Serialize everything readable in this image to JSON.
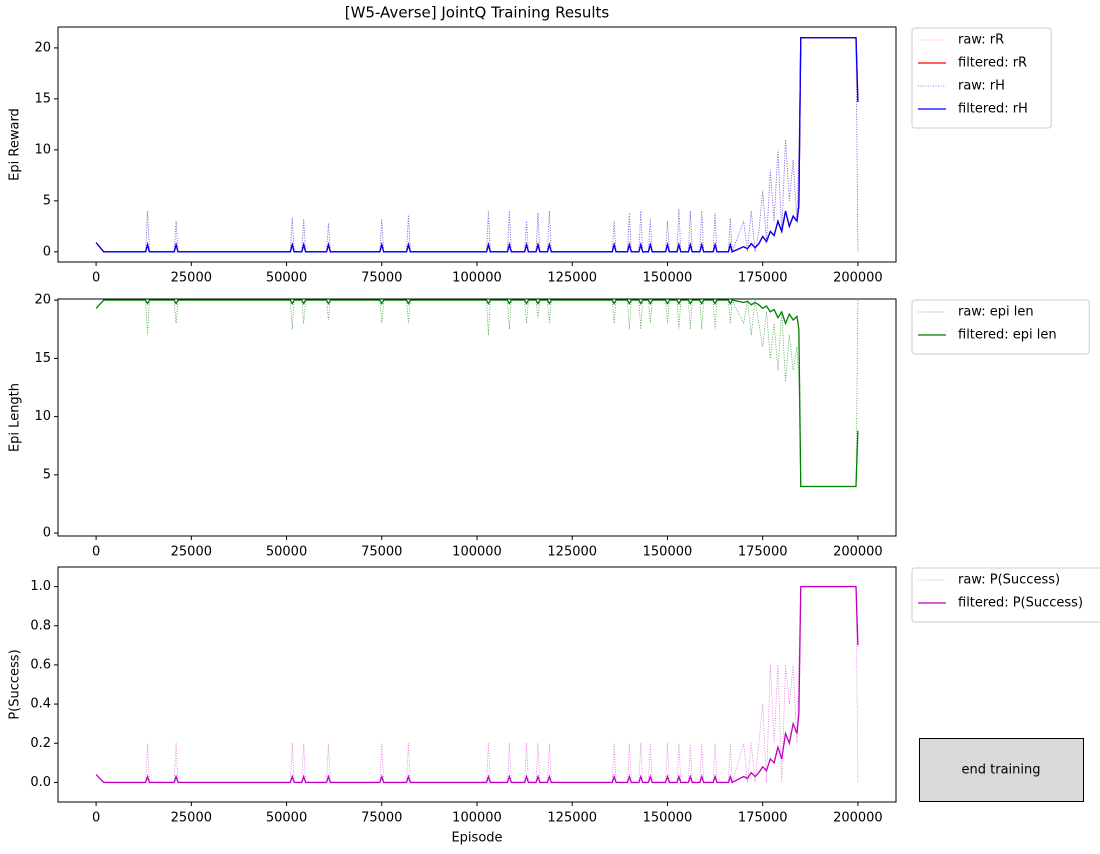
{
  "chart_data": [
    {
      "type": "line",
      "title": "[W5-Averse] JointQ Training Results",
      "ylabel": "Epi Reward",
      "x": [
        0,
        2000,
        13000,
        13500,
        14000,
        20500,
        21000,
        21500,
        51000,
        51500,
        52000,
        54000,
        54500,
        55000,
        60500,
        61000,
        61500,
        74500,
        75000,
        75500,
        81500,
        82000,
        82500,
        102500,
        103000,
        103500,
        108000,
        108500,
        109000,
        112500,
        113000,
        113500,
        115500,
        116000,
        116500,
        118500,
        119000,
        119500,
        135500,
        136000,
        136500,
        139500,
        140000,
        140500,
        142500,
        143000,
        143500,
        145000,
        145500,
        146000,
        149500,
        150000,
        150500,
        152500,
        153000,
        153500,
        155500,
        156000,
        156500,
        158500,
        159000,
        159500,
        162000,
        162500,
        163000,
        166000,
        166500,
        167000,
        170000,
        171000,
        172000,
        173000,
        174000,
        175000,
        176000,
        177000,
        178000,
        179000,
        180000,
        181000,
        182000,
        183000,
        184000,
        184500,
        185000,
        186000,
        199000,
        199500,
        200000
      ],
      "xlim": [
        -10000,
        210000
      ],
      "xticks": [
        0,
        25000,
        50000,
        75000,
        100000,
        125000,
        150000,
        175000,
        200000
      ],
      "ylim": [
        -1,
        22.05
      ],
      "yticks": [
        0,
        5,
        10,
        15,
        20
      ],
      "grid": false,
      "legend": "outside-right",
      "series": [
        {
          "name": "raw: rR",
          "color": "#ff8080",
          "linestyle": "dotted",
          "values": [
            0.9,
            0,
            0,
            4,
            0,
            0,
            3,
            0,
            0,
            3.3,
            0,
            0,
            3.2,
            0,
            0,
            2.8,
            0,
            0,
            3.2,
            0,
            0,
            3.6,
            0,
            0,
            4,
            0,
            0,
            4,
            0,
            0,
            3,
            0,
            0,
            3.8,
            0,
            0,
            4,
            0,
            0,
            3,
            0,
            0,
            3.8,
            0,
            0,
            4,
            0,
            0,
            3.2,
            0,
            0,
            3,
            0,
            0,
            4.2,
            0,
            0,
            4,
            0,
            0,
            4,
            0,
            0,
            3.8,
            0,
            0,
            3.3,
            0,
            3,
            0,
            4,
            0,
            2,
            6,
            1,
            8,
            3,
            10,
            2,
            11,
            5,
            9,
            3,
            10,
            21,
            21,
            21,
            21,
            0
          ]
        },
        {
          "name": "filtered: rR",
          "color": "#ff0000",
          "linestyle": "solid",
          "values": [
            0.9,
            0,
            0,
            0.7,
            0,
            0,
            0.7,
            0,
            0,
            0.7,
            0,
            0,
            0.7,
            0,
            0,
            0.7,
            0,
            0,
            0.7,
            0,
            0,
            0.7,
            0,
            0,
            0.7,
            0,
            0,
            0.7,
            0,
            0,
            0.7,
            0,
            0,
            0.7,
            0,
            0,
            0.7,
            0,
            0,
            0.7,
            0,
            0,
            0.7,
            0,
            0,
            0.7,
            0,
            0,
            0.7,
            0,
            0,
            0.7,
            0,
            0,
            0.7,
            0,
            0,
            0.7,
            0,
            0,
            0.7,
            0,
            0,
            0.7,
            0,
            0,
            0.7,
            0,
            0.5,
            0.3,
            0.8,
            0.4,
            0.8,
            1.5,
            1,
            2,
            1.6,
            3,
            2,
            4,
            2.5,
            3.5,
            3,
            4.5,
            21,
            21,
            21,
            21,
            14.7
          ]
        },
        {
          "name": "raw: rH",
          "color": "#6060ff",
          "linestyle": "dotted",
          "values": [
            0.9,
            0,
            0,
            4,
            0,
            0,
            3,
            0,
            0,
            3.3,
            0,
            0,
            3.2,
            0,
            0,
            2.8,
            0,
            0,
            3.2,
            0,
            0,
            3.6,
            0,
            0,
            4,
            0,
            0,
            4,
            0,
            0,
            3,
            0,
            0,
            3.8,
            0,
            0,
            4,
            0,
            0,
            3,
            0,
            0,
            3.8,
            0,
            0,
            4,
            0,
            0,
            3.2,
            0,
            0,
            3,
            0,
            0,
            4.2,
            0,
            0,
            4,
            0,
            0,
            4,
            0,
            0,
            3.8,
            0,
            0,
            3.3,
            0,
            3,
            0,
            4,
            0,
            2,
            6,
            1,
            8,
            3,
            10,
            2,
            11,
            5,
            9,
            3,
            10,
            21,
            21,
            21,
            21,
            0
          ]
        },
        {
          "name": "filtered: rH",
          "color": "#0000ff",
          "linestyle": "solid",
          "values": [
            0.9,
            0,
            0,
            0.7,
            0,
            0,
            0.7,
            0,
            0,
            0.7,
            0,
            0,
            0.7,
            0,
            0,
            0.7,
            0,
            0,
            0.7,
            0,
            0,
            0.7,
            0,
            0,
            0.7,
            0,
            0,
            0.7,
            0,
            0,
            0.7,
            0,
            0,
            0.7,
            0,
            0,
            0.7,
            0,
            0,
            0.7,
            0,
            0,
            0.7,
            0,
            0,
            0.7,
            0,
            0,
            0.7,
            0,
            0,
            0.7,
            0,
            0,
            0.7,
            0,
            0,
            0.7,
            0,
            0,
            0.7,
            0,
            0,
            0.7,
            0,
            0,
            0.7,
            0,
            0.5,
            0.3,
            0.8,
            0.4,
            0.8,
            1.5,
            1,
            2,
            1.6,
            3,
            2,
            4,
            2.5,
            3.5,
            3,
            4.5,
            21,
            21,
            21,
            21,
            14.7
          ]
        }
      ]
    },
    {
      "type": "line",
      "ylabel": "Epi Length",
      "x": [
        0,
        2000,
        13000,
        13500,
        14000,
        20500,
        21000,
        21500,
        51000,
        51500,
        52000,
        54000,
        54500,
        55000,
        60500,
        61000,
        61500,
        74500,
        75000,
        75500,
        81500,
        82000,
        82500,
        102500,
        103000,
        103500,
        108000,
        108500,
        109000,
        112500,
        113000,
        113500,
        115500,
        116000,
        116500,
        118500,
        119000,
        119500,
        135500,
        136000,
        136500,
        139500,
        140000,
        140500,
        142500,
        143000,
        143500,
        145000,
        145500,
        146000,
        149500,
        150000,
        150500,
        152500,
        153000,
        153500,
        155500,
        156000,
        156500,
        158500,
        159000,
        159500,
        162000,
        162500,
        163000,
        166000,
        166500,
        167000,
        170000,
        171000,
        172000,
        173000,
        174000,
        175000,
        176000,
        177000,
        178000,
        179000,
        180000,
        181000,
        182000,
        183000,
        184000,
        184500,
        185000,
        186000,
        199000,
        199500,
        200000
      ],
      "xlim": [
        -10000,
        210000
      ],
      "xticks": [
        0,
        25000,
        50000,
        75000,
        100000,
        125000,
        150000,
        175000,
        200000
      ],
      "ylim": [
        -0.25,
        20.1
      ],
      "yticks": [
        0,
        5,
        10,
        15,
        20
      ],
      "grid": false,
      "legend": "outside-right",
      "series": [
        {
          "name": "raw: epi len",
          "color": "#40a040",
          "linestyle": "dotted",
          "values": [
            19.3,
            20,
            20,
            17,
            20,
            20,
            18,
            20,
            20,
            17.5,
            20,
            20,
            18,
            20,
            20,
            18.3,
            20,
            20,
            18,
            20,
            20,
            18,
            20,
            20,
            17,
            20,
            20,
            17.5,
            20,
            20,
            18,
            20,
            20,
            18.5,
            20,
            20,
            18,
            20,
            20,
            18,
            20,
            20,
            17.5,
            20,
            20,
            17.5,
            20,
            20,
            18,
            20,
            20,
            18,
            20,
            20,
            17.5,
            20,
            20,
            17.5,
            20,
            20,
            17.5,
            20,
            20,
            17.5,
            20,
            20,
            18,
            20,
            18,
            20,
            17,
            20,
            18,
            16,
            19,
            15,
            18,
            14,
            19,
            13,
            17,
            14,
            16,
            13,
            4,
            4,
            4,
            4,
            20
          ]
        },
        {
          "name": "filtered: epi len",
          "color": "#008000",
          "linestyle": "solid",
          "values": [
            19.3,
            20,
            20,
            19.7,
            20,
            20,
            19.7,
            20,
            20,
            19.7,
            20,
            20,
            19.7,
            20,
            20,
            19.7,
            20,
            20,
            19.7,
            20,
            20,
            19.7,
            20,
            20,
            19.7,
            20,
            20,
            19.7,
            20,
            20,
            19.7,
            20,
            20,
            19.7,
            20,
            20,
            19.7,
            20,
            20,
            19.7,
            20,
            20,
            19.7,
            20,
            20,
            19.7,
            20,
            20,
            19.7,
            20,
            20,
            19.7,
            20,
            20,
            19.7,
            20,
            20,
            19.7,
            20,
            20,
            19.7,
            20,
            20,
            19.7,
            20,
            20,
            19.7,
            20,
            19.8,
            19.9,
            19.6,
            19.8,
            19.6,
            19.3,
            19.5,
            19,
            19.2,
            18.5,
            19,
            18,
            18.8,
            18.3,
            18.6,
            17.5,
            4,
            4,
            4,
            4,
            8.8
          ]
        }
      ]
    },
    {
      "type": "line",
      "ylabel": "P(Success)",
      "xlabel": "Episode",
      "x": [
        0,
        2000,
        13000,
        13500,
        14000,
        20500,
        21000,
        21500,
        51000,
        51500,
        52000,
        54000,
        54500,
        55000,
        60500,
        61000,
        61500,
        74500,
        75000,
        75500,
        81500,
        82000,
        82500,
        102500,
        103000,
        103500,
        108000,
        108500,
        109000,
        112500,
        113000,
        113500,
        115500,
        116000,
        116500,
        118500,
        119000,
        119500,
        135500,
        136000,
        136500,
        139500,
        140000,
        140500,
        142500,
        143000,
        143500,
        145000,
        145500,
        146000,
        149500,
        150000,
        150500,
        152500,
        153000,
        153500,
        155500,
        156000,
        156500,
        158500,
        159000,
        159500,
        162000,
        162500,
        163000,
        166000,
        166500,
        167000,
        170000,
        171000,
        172000,
        173000,
        174000,
        175000,
        176000,
        177000,
        178000,
        179000,
        180000,
        181000,
        182000,
        183000,
        184000,
        184500,
        185000,
        186000,
        199000,
        199500,
        200000
      ],
      "xlim": [
        -10000,
        210000
      ],
      "xticks": [
        0,
        25000,
        50000,
        75000,
        100000,
        125000,
        150000,
        175000,
        200000
      ],
      "ylim": [
        -0.1,
        1.1
      ],
      "yticks": [
        {
          "value": 0,
          "label": "0.0"
        },
        0.2,
        0.4,
        0.6,
        0.8,
        {
          "value": 1,
          "label": "1.0"
        }
      ],
      "grid": false,
      "legend": "outside-right",
      "series": [
        {
          "name": "raw: P(Success)",
          "color": "#e070e0",
          "linestyle": "dotted",
          "values": [
            0.04,
            0,
            0,
            0.2,
            0,
            0,
            0.2,
            0,
            0,
            0.2,
            0,
            0,
            0.2,
            0,
            0,
            0.2,
            0,
            0,
            0.2,
            0,
            0,
            0.2,
            0,
            0,
            0.2,
            0,
            0,
            0.2,
            0,
            0,
            0.2,
            0,
            0,
            0.2,
            0,
            0,
            0.2,
            0,
            0,
            0.2,
            0,
            0,
            0.2,
            0,
            0,
            0.2,
            0,
            0,
            0.2,
            0,
            0,
            0.2,
            0,
            0,
            0.2,
            0,
            0,
            0.2,
            0,
            0,
            0.2,
            0,
            0,
            0.2,
            0,
            0,
            0.2,
            0,
            0.2,
            0,
            0.2,
            0,
            0.2,
            0.4,
            0,
            0.6,
            0.2,
            0.6,
            0,
            0.6,
            0.4,
            0.6,
            0.2,
            0.6,
            1,
            1,
            1,
            1,
            0
          ]
        },
        {
          "name": "filtered: P(Success)",
          "color": "#c000c0",
          "linestyle": "solid",
          "values": [
            0.04,
            0,
            0,
            0.03,
            0,
            0,
            0.03,
            0,
            0,
            0.03,
            0,
            0,
            0.03,
            0,
            0,
            0.03,
            0,
            0,
            0.03,
            0,
            0,
            0.03,
            0,
            0,
            0.03,
            0,
            0,
            0.03,
            0,
            0,
            0.03,
            0,
            0,
            0.03,
            0,
            0,
            0.03,
            0,
            0,
            0.03,
            0,
            0,
            0.03,
            0,
            0,
            0.03,
            0,
            0,
            0.03,
            0,
            0,
            0.03,
            0,
            0,
            0.03,
            0,
            0,
            0.03,
            0,
            0,
            0.03,
            0,
            0,
            0.03,
            0,
            0,
            0.03,
            0,
            0.03,
            0.02,
            0.05,
            0.03,
            0.05,
            0.08,
            0.06,
            0.12,
            0.1,
            0.18,
            0.12,
            0.25,
            0.2,
            0.3,
            0.25,
            0.35,
            1,
            1,
            1,
            1,
            0.7
          ]
        }
      ]
    }
  ],
  "button": {
    "label": "end training"
  }
}
